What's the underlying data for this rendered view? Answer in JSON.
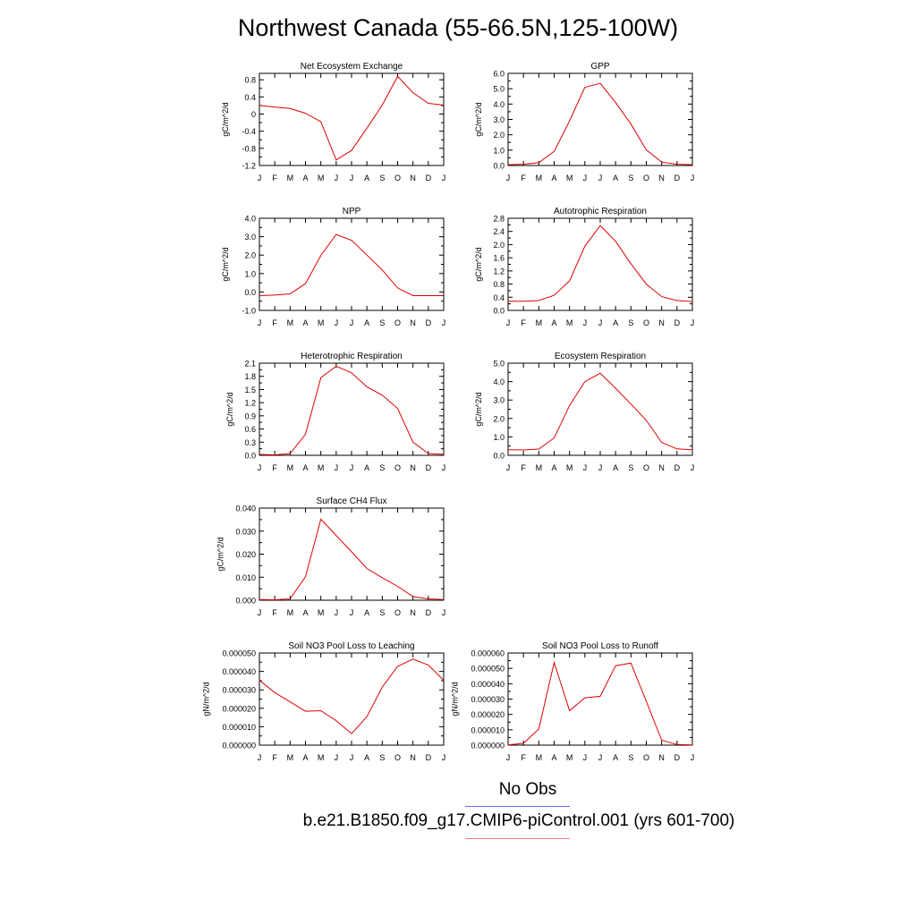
{
  "title": "Northwest Canada (55-66.5N,125-100W)",
  "legend": {
    "obs_label": "No Obs",
    "obs_color": "#6b6bea",
    "model_label": "b.e21.B1850.f09_g17.CMIP6-piControl.001 (yrs 601-700)",
    "model_color": "#f08080"
  },
  "line_color": "#e00000",
  "months": [
    "J",
    "F",
    "M",
    "A",
    "M",
    "J",
    "J",
    "A",
    "S",
    "O",
    "N",
    "D",
    "J"
  ],
  "chart_data": [
    {
      "type": "line",
      "title": "Net Ecosystem Exchange",
      "ylabel": "gC/m^2/d",
      "ylim": [
        -1.2,
        0.95
      ],
      "yticks": [
        -1.2,
        -0.8,
        -0.4,
        0,
        0.4,
        0.8
      ],
      "ytick_labels": [
        "-1.2",
        "-0.8",
        "-0.4",
        "0",
        "0.4",
        "0.8"
      ],
      "y": [
        0.2,
        0.16,
        0.13,
        0.02,
        -0.18,
        -1.07,
        -0.85,
        -0.33,
        0.21,
        0.88,
        0.5,
        0.25,
        0.21
      ]
    },
    {
      "type": "line",
      "title": "GPP",
      "ylabel": "gC/m^2/d",
      "ylim": [
        0,
        6
      ],
      "yticks": [
        0,
        1,
        2,
        3,
        4,
        5,
        6
      ],
      "ytick_labels": [
        "0.0",
        "1.0",
        "2.0",
        "3.0",
        "4.0",
        "5.0",
        "6.0"
      ],
      "y": [
        0.05,
        0.08,
        0.18,
        0.92,
        2.9,
        5.1,
        5.35,
        4.1,
        2.7,
        1.02,
        0.22,
        0.08,
        0.05
      ]
    },
    {
      "type": "line",
      "title": "NPP",
      "ylabel": "gC/m^2/d",
      "ylim": [
        -1,
        4
      ],
      "yticks": [
        -1,
        0,
        1,
        2,
        3,
        4
      ],
      "ytick_labels": [
        "-1.0",
        "0.0",
        "1.0",
        "2.0",
        "3.0",
        "4.0"
      ],
      "y": [
        -0.2,
        -0.17,
        -0.1,
        0.45,
        1.98,
        3.12,
        2.8,
        2.0,
        1.2,
        0.22,
        -0.2,
        -0.2,
        -0.2
      ]
    },
    {
      "type": "line",
      "title": "Autotrophic Respiration",
      "ylabel": "gC/m^2/d",
      "ylim": [
        0,
        2.8
      ],
      "yticks": [
        0,
        0.4,
        0.8,
        1.2,
        1.6,
        2.0,
        2.4,
        2.8
      ],
      "ytick_labels": [
        "0.0",
        "0.4",
        "0.8",
        "1.2",
        "1.6",
        "2.0",
        "2.4",
        "2.8"
      ],
      "y": [
        0.28,
        0.28,
        0.3,
        0.46,
        0.9,
        1.95,
        2.58,
        2.1,
        1.42,
        0.8,
        0.42,
        0.3,
        0.27
      ]
    },
    {
      "type": "line",
      "title": "Heterotrophic Respiration",
      "ylabel": "gC/m^2/d",
      "ylim": [
        0,
        2.1
      ],
      "yticks": [
        0,
        0.3,
        0.6,
        0.9,
        1.2,
        1.5,
        1.8,
        2.1
      ],
      "ytick_labels": [
        "0.0",
        "0.3",
        "0.6",
        "0.9",
        "1.2",
        "1.5",
        "1.8",
        "2.1"
      ],
      "y": [
        0.02,
        0.01,
        0.04,
        0.48,
        1.77,
        2.03,
        1.88,
        1.56,
        1.37,
        1.07,
        0.3,
        0.04,
        0.02
      ]
    },
    {
      "type": "line",
      "title": "Ecosystem Respiration",
      "ylabel": "gC/m^2/d",
      "ylim": [
        0,
        5
      ],
      "yticks": [
        0,
        1,
        2,
        3,
        4,
        5
      ],
      "ytick_labels": [
        "0.0",
        "1.0",
        "2.0",
        "3.0",
        "4.0",
        "5.0"
      ],
      "y": [
        0.3,
        0.29,
        0.34,
        0.94,
        2.7,
        4.0,
        4.45,
        3.64,
        2.78,
        1.9,
        0.7,
        0.35,
        0.3
      ]
    },
    {
      "type": "line",
      "title": "Surface CH4 Flux",
      "ylabel": "gC/m^2/d",
      "ylim": [
        0,
        0.04
      ],
      "yticks": [
        0,
        0.01,
        0.02,
        0.03,
        0.04
      ],
      "ytick_labels": [
        "0.000",
        "0.010",
        "0.020",
        "0.030",
        "0.040"
      ],
      "y": [
        0.0003,
        0.0002,
        0.0006,
        0.0102,
        0.0352,
        0.0281,
        0.021,
        0.0138,
        0.0098,
        0.006,
        0.0016,
        0.0006,
        0.0003
      ]
    },
    null,
    {
      "type": "line",
      "title": "Soil NO3 Pool Loss to Leaching",
      "ylabel": "gN/m^2/d",
      "ylim": [
        0,
        5e-05
      ],
      "yticks": [
        0,
        1e-05,
        2e-05,
        3e-05,
        4e-05,
        5e-05
      ],
      "ytick_labels": [
        "0.000000",
        "0.000010",
        "0.000020",
        "0.000030",
        "0.000040",
        "0.000050"
      ],
      "y": [
        3.52e-05,
        2.85e-05,
        2.35e-05,
        1.84e-05,
        1.87e-05,
        1.33e-05,
        6.2e-06,
        1.55e-05,
        3.15e-05,
        4.27e-05,
        4.67e-05,
        4.35e-05,
        3.52e-05
      ]
    },
    {
      "type": "line",
      "title": "Soil NO3 Pool Loss to Runoff",
      "ylabel": "gN/m^2/d",
      "ylim": [
        0,
        6e-05
      ],
      "yticks": [
        0,
        1e-05,
        2e-05,
        3e-05,
        4e-05,
        5e-05,
        6e-05
      ],
      "ytick_labels": [
        "0.000000",
        "0.000010",
        "0.000020",
        "0.000030",
        "0.000040",
        "0.000050",
        "0.000060"
      ],
      "y": [
        2e-07,
        1.2e-06,
        1.05e-05,
        5.38e-05,
        2.24e-05,
        3.08e-05,
        3.18e-05,
        5.17e-05,
        5.35e-05,
        2.85e-05,
        3.2e-06,
        4e-07,
        2e-07
      ]
    }
  ]
}
